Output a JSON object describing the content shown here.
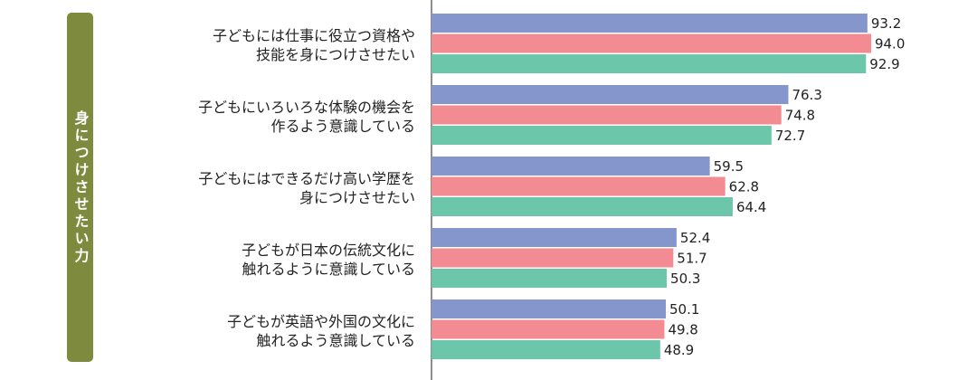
{
  "side_label": "身につけさせたい力",
  "colors": {
    "side_label_bg": "#7e8a3e",
    "axis": "#444444"
  },
  "chart_data": {
    "type": "bar",
    "orientation": "horizontal",
    "categories": [
      [
        "子どもには仕事に役立つ資格や",
        "技能を身につけさせたい"
      ],
      [
        "子どもにいろいろな体験の機会を",
        "作るよう意識している"
      ],
      [
        "子どもにはできるだけ高い学歴を",
        "身につけさせたい"
      ],
      [
        "子どもが日本の伝統文化に",
        "触れるように意識している"
      ],
      [
        "子どもが英語や外国の文化に",
        "触れるよう意識している"
      ]
    ],
    "series": [
      {
        "color": "#8496cb",
        "values": [
          93.2,
          76.3,
          59.5,
          52.4,
          50.1
        ]
      },
      {
        "color": "#f28b92",
        "values": [
          94.0,
          74.8,
          62.8,
          51.7,
          49.8
        ]
      },
      {
        "color": "#6cc6a9",
        "values": [
          92.9,
          72.7,
          64.4,
          50.3,
          48.9
        ]
      }
    ],
    "value_labels": [
      [
        "93.2",
        "76.3",
        "59.5",
        "52.4",
        "50.1"
      ],
      [
        "94.0",
        "74.8",
        "62.8",
        "51.7",
        "49.8"
      ],
      [
        "92.9",
        "72.7",
        "64.4",
        "50.3",
        "48.9"
      ]
    ],
    "xlim": [
      0,
      100
    ],
    "title": "",
    "xlabel": "",
    "ylabel": "",
    "grid": false,
    "legend": "none"
  }
}
